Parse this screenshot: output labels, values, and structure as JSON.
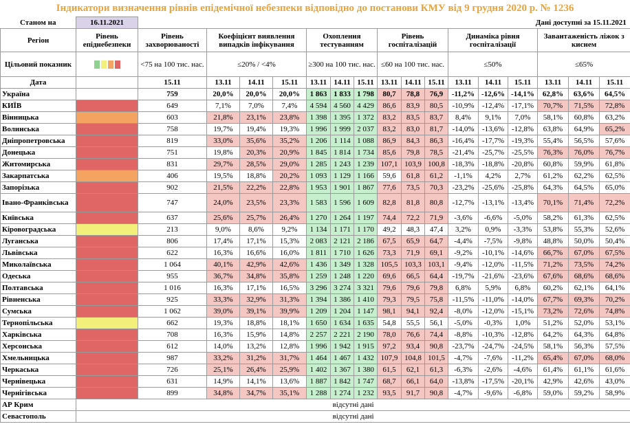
{
  "header": {
    "title": "Індикатори визначення рівнів епідемічної небезпеки відповідно до постанови КМУ від 9 грудня 2020 р. № 1236",
    "as_of_label": "Станом на",
    "as_of_date": "16.11.2021",
    "data_available": "Дані доступні за 15.11.2021"
  },
  "columns": {
    "region": "Регіон",
    "level": "Рівень епіднебезпеки",
    "incidence": "Рівень захворюваності",
    "detection": "Коефіцієнт виявлення випадків інфікування",
    "testing": "Охоплення тестуванням",
    "hospital": "Рівень госпіталізацій",
    "dynamics": "Динаміка рівня госпіталізації",
    "oxygen": "Завантаженість ліжок з киснем"
  },
  "targets": {
    "label": "Цільовий показник",
    "incidence": "<75 на 100 тис. нас.",
    "detection": "≤20% / <4%",
    "testing": "≥300 на 100 тис. нас.",
    "hospital": "≤60 на 100 тис. нас.",
    "dynamics": "≤50%",
    "oxygen": "≤65%"
  },
  "dates": {
    "label": "Дата",
    "incidence": "15.11",
    "days": [
      "13.11",
      "14.11",
      "15.11"
    ]
  },
  "rows": [
    {
      "region": "Україна",
      "level": null,
      "incidence": "759",
      "detection": [
        "20,0%",
        "20,0%",
        "20,0%"
      ],
      "testing": [
        "1 863",
        "1 833",
        "1 798"
      ],
      "hospital": [
        "80,7",
        "78,8",
        "76,9"
      ],
      "dynamics": [
        "-11,2%",
        "-12,6%",
        "-14,1%"
      ],
      "oxygen": [
        "62,8%",
        "63,6%",
        "64,5%"
      ]
    },
    {
      "region": "КИЇВ",
      "level": "#e06666",
      "incidence": "649",
      "detection": [
        "7,1%",
        "7,0%",
        "7,4%"
      ],
      "testing": [
        "4 594",
        "4 560",
        "4 429"
      ],
      "hospital": [
        "86,6",
        "83,9",
        "80,5"
      ],
      "dynamics": [
        "-10,9%",
        "-12,4%",
        "-17,1%"
      ],
      "oxygen": [
        "70,7%",
        "71,5%",
        "72,8%"
      ]
    },
    {
      "region": "Вінницька",
      "level": "#f4a460",
      "incidence": "603",
      "detection": [
        "21,8%",
        "23,1%",
        "23,8%"
      ],
      "testing": [
        "1 398",
        "1 395",
        "1 372"
      ],
      "hospital": [
        "83,2",
        "83,5",
        "83,7"
      ],
      "dynamics": [
        "8,4%",
        "9,1%",
        "7,0%"
      ],
      "oxygen": [
        "58,1%",
        "60,8%",
        "63,2%"
      ]
    },
    {
      "region": "Волинська",
      "level": "#e06666",
      "incidence": "758",
      "detection": [
        "19,7%",
        "19,4%",
        "19,3%"
      ],
      "testing": [
        "1 996",
        "1 999",
        "2 037"
      ],
      "hospital": [
        "83,2",
        "83,0",
        "81,7"
      ],
      "dynamics": [
        "-14,0%",
        "-13,6%",
        "-12,8%"
      ],
      "oxygen": [
        "63,8%",
        "64,9%",
        "65,2%"
      ]
    },
    {
      "region": "Дніпропетровська",
      "level": "#e06666",
      "incidence": "819",
      "detection": [
        "33,0%",
        "35,6%",
        "35,2%"
      ],
      "testing": [
        "1 206",
        "1 114",
        "1 088"
      ],
      "hospital": [
        "86,9",
        "84,3",
        "86,3"
      ],
      "dynamics": [
        "-16,4%",
        "-17,7%",
        "-19,3%"
      ],
      "oxygen": [
        "55,4%",
        "56,5%",
        "57,6%"
      ]
    },
    {
      "region": "Донецька",
      "level": "#e06666",
      "incidence": "751",
      "detection": [
        "19,8%",
        "20,3%",
        "20,9%"
      ],
      "testing": [
        "1 845",
        "1 814",
        "1 734"
      ],
      "hospital": [
        "85,6",
        "79,8",
        "78,5"
      ],
      "dynamics": [
        "-21,4%",
        "-25,7%",
        "-25,5%"
      ],
      "oxygen": [
        "76,3%",
        "76,0%",
        "76,7%"
      ]
    },
    {
      "region": "Житомирська",
      "level": "#e06666",
      "incidence": "831",
      "detection": [
        "29,7%",
        "28,5%",
        "29,0%"
      ],
      "testing": [
        "1 285",
        "1 243",
        "1 239"
      ],
      "hospital": [
        "107,1",
        "103,9",
        "100,8"
      ],
      "dynamics": [
        "-18,3%",
        "-18,8%",
        "-20,8%"
      ],
      "oxygen": [
        "60,8%",
        "59,9%",
        "61,8%"
      ]
    },
    {
      "region": "Закарпатська",
      "level": "#f4a460",
      "incidence": "406",
      "detection": [
        "19,5%",
        "18,8%",
        "20,2%"
      ],
      "testing": [
        "1 093",
        "1 129",
        "1 166"
      ],
      "hospital": [
        "59,6",
        "61,8",
        "61,2"
      ],
      "dynamics": [
        "-1,1%",
        "4,2%",
        "2,7%"
      ],
      "oxygen": [
        "61,2%",
        "62,2%",
        "62,5%"
      ]
    },
    {
      "region": "Запорізька",
      "level": "#e06666",
      "incidence": "902",
      "detection": [
        "21,5%",
        "22,2%",
        "22,8%"
      ],
      "testing": [
        "1 953",
        "1 901",
        "1 867"
      ],
      "hospital": [
        "77,6",
        "73,5",
        "70,3"
      ],
      "dynamics": [
        "-23,2%",
        "-25,6%",
        "-25,8%"
      ],
      "oxygen": [
        "64,3%",
        "64,5%",
        "65,0%"
      ]
    },
    {
      "region": "Івано-Франківська",
      "level": "#e06666",
      "incidence": "747",
      "detection": [
        "24,0%",
        "23,5%",
        "23,3%"
      ],
      "testing": [
        "1 583",
        "1 596",
        "1 609"
      ],
      "hospital": [
        "82,8",
        "81,8",
        "80,8"
      ],
      "dynamics": [
        "-12,7%",
        "-13,1%",
        "-13,4%"
      ],
      "oxygen": [
        "70,1%",
        "71,4%",
        "72,2%"
      ]
    },
    {
      "region": "Київська",
      "level": "#e06666",
      "incidence": "637",
      "detection": [
        "25,6%",
        "25,7%",
        "26,4%"
      ],
      "testing": [
        "1 270",
        "1 264",
        "1 197"
      ],
      "hospital": [
        "74,4",
        "72,2",
        "71,9"
      ],
      "dynamics": [
        "-3,6%",
        "-6,6%",
        "-5,0%"
      ],
      "oxygen": [
        "58,2%",
        "61,3%",
        "62,5%"
      ]
    },
    {
      "region": "Кіровоградська",
      "level": "#f2f07a",
      "incidence": "213",
      "detection": [
        "9,0%",
        "8,6%",
        "9,2%"
      ],
      "testing": [
        "1 134",
        "1 171",
        "1 170"
      ],
      "hospital": [
        "49,2",
        "48,3",
        "47,4"
      ],
      "dynamics": [
        "3,2%",
        "0,9%",
        "-3,3%"
      ],
      "oxygen": [
        "53,8%",
        "55,3%",
        "52,6%"
      ]
    },
    {
      "region": "Луганська",
      "level": "#e06666",
      "incidence": "806",
      "detection": [
        "17,4%",
        "17,1%",
        "15,3%"
      ],
      "testing": [
        "2 083",
        "2 121",
        "2 186"
      ],
      "hospital": [
        "67,5",
        "65,9",
        "64,7"
      ],
      "dynamics": [
        "-4,4%",
        "-7,5%",
        "-9,8%"
      ],
      "oxygen": [
        "48,8%",
        "50,0%",
        "50,4%"
      ]
    },
    {
      "region": "Львівська",
      "level": "#e06666",
      "incidence": "622",
      "detection": [
        "16,3%",
        "16,6%",
        "16,0%"
      ],
      "testing": [
        "1 811",
        "1 710",
        "1 626"
      ],
      "hospital": [
        "73,3",
        "71,9",
        "69,1"
      ],
      "dynamics": [
        "-9,2%",
        "-10,1%",
        "-14,6%"
      ],
      "oxygen": [
        "66,7%",
        "67,0%",
        "67,5%"
      ]
    },
    {
      "region": "Миколаївська",
      "level": "#e06666",
      "incidence": "1 064",
      "detection": [
        "40,1%",
        "42,9%",
        "42,6%"
      ],
      "testing": [
        "1 436",
        "1 349",
        "1 328"
      ],
      "hospital": [
        "105,5",
        "103,3",
        "103,1"
      ],
      "dynamics": [
        "-9,4%",
        "-12,0%",
        "-11,5%"
      ],
      "oxygen": [
        "71,2%",
        "73,5%",
        "74,2%"
      ]
    },
    {
      "region": "Одеська",
      "level": "#e06666",
      "incidence": "955",
      "detection": [
        "36,7%",
        "34,8%",
        "35,8%"
      ],
      "testing": [
        "1 259",
        "1 248",
        "1 220"
      ],
      "hospital": [
        "69,6",
        "66,5",
        "64,4"
      ],
      "dynamics": [
        "-19,7%",
        "-21,6%",
        "-23,6%"
      ],
      "oxygen": [
        "67,6%",
        "68,6%",
        "68,6%"
      ]
    },
    {
      "region": "Полтавська",
      "level": "#e06666",
      "incidence": "1 016",
      "detection": [
        "16,3%",
        "17,1%",
        "16,5%"
      ],
      "testing": [
        "3 296",
        "3 274",
        "3 321"
      ],
      "hospital": [
        "79,6",
        "79,6",
        "79,8"
      ],
      "dynamics": [
        "6,8%",
        "5,9%",
        "6,8%"
      ],
      "oxygen": [
        "60,2%",
        "62,1%",
        "64,1%"
      ]
    },
    {
      "region": "Рівненська",
      "level": "#e06666",
      "incidence": "925",
      "detection": [
        "33,3%",
        "32,9%",
        "31,3%"
      ],
      "testing": [
        "1 394",
        "1 386",
        "1 410"
      ],
      "hospital": [
        "79,3",
        "79,5",
        "75,8"
      ],
      "dynamics": [
        "-11,5%",
        "-11,0%",
        "-14,0%"
      ],
      "oxygen": [
        "67,7%",
        "69,3%",
        "70,2%"
      ]
    },
    {
      "region": "Сумська",
      "level": "#e06666",
      "incidence": "1 062",
      "detection": [
        "39,0%",
        "39,1%",
        "39,9%"
      ],
      "testing": [
        "1 209",
        "1 204",
        "1 147"
      ],
      "hospital": [
        "98,1",
        "94,1",
        "92,4"
      ],
      "dynamics": [
        "-8,0%",
        "-12,0%",
        "-15,1%"
      ],
      "oxygen": [
        "73,2%",
        "72,6%",
        "74,8%"
      ]
    },
    {
      "region": "Тернопільська",
      "level": "#f2f07a",
      "incidence": "662",
      "detection": [
        "19,3%",
        "18,8%",
        "18,1%"
      ],
      "testing": [
        "1 650",
        "1 634",
        "1 635"
      ],
      "hospital": [
        "54,8",
        "55,5",
        "56,1"
      ],
      "dynamics": [
        "-5,0%",
        "-0,3%",
        "1,0%"
      ],
      "oxygen": [
        "51,2%",
        "52,0%",
        "53,1%"
      ]
    },
    {
      "region": "Харківська",
      "level": "#e06666",
      "incidence": "708",
      "detection": [
        "16,3%",
        "15,9%",
        "14,8%"
      ],
      "testing": [
        "2 257",
        "2 221",
        "2 190"
      ],
      "hospital": [
        "78,0",
        "76,6",
        "74,4"
      ],
      "dynamics": [
        "-8,8%",
        "-10,3%",
        "-12,8%"
      ],
      "oxygen": [
        "64,2%",
        "64,3%",
        "64,8%"
      ]
    },
    {
      "region": "Херсонська",
      "level": "#e06666",
      "incidence": "612",
      "detection": [
        "14,0%",
        "13,2%",
        "12,8%"
      ],
      "testing": [
        "1 996",
        "1 942",
        "1 915"
      ],
      "hospital": [
        "97,2",
        "93,4",
        "90,8"
      ],
      "dynamics": [
        "-23,7%",
        "-24,7%",
        "-24,5%"
      ],
      "oxygen": [
        "58,1%",
        "56,3%",
        "57,5%"
      ]
    },
    {
      "region": "Хмельницька",
      "level": "#e06666",
      "incidence": "987",
      "detection": [
        "33,2%",
        "31,2%",
        "31,7%"
      ],
      "testing": [
        "1 464",
        "1 467",
        "1 432"
      ],
      "hospital": [
        "107,9",
        "104,8",
        "101,5"
      ],
      "dynamics": [
        "-4,7%",
        "-7,6%",
        "-11,2%"
      ],
      "oxygen": [
        "65,4%",
        "67,0%",
        "68,0%"
      ]
    },
    {
      "region": "Черкаська",
      "level": "#e06666",
      "incidence": "726",
      "detection": [
        "25,1%",
        "26,4%",
        "25,9%"
      ],
      "testing": [
        "1 402",
        "1 367",
        "1 380"
      ],
      "hospital": [
        "61,5",
        "62,1",
        "61,3"
      ],
      "dynamics": [
        "-6,3%",
        "-2,6%",
        "-4,6%"
      ],
      "oxygen": [
        "61,4%",
        "61,1%",
        "61,6%"
      ]
    },
    {
      "region": "Чернівецька",
      "level": "#e06666",
      "incidence": "631",
      "detection": [
        "14,9%",
        "14,1%",
        "13,6%"
      ],
      "testing": [
        "1 887",
        "1 842",
        "1 747"
      ],
      "hospital": [
        "68,7",
        "66,1",
        "64,0"
      ],
      "dynamics": [
        "-13,8%",
        "-17,5%",
        "-20,1%"
      ],
      "oxygen": [
        "42,9%",
        "42,6%",
        "43,0%"
      ]
    },
    {
      "region": "Чернігівська",
      "level": "#e06666",
      "incidence": "899",
      "detection": [
        "34,8%",
        "34,7%",
        "35,1%"
      ],
      "testing": [
        "1 288",
        "1 274",
        "1 232"
      ],
      "hospital": [
        "93,5",
        "91,7",
        "90,8"
      ],
      "dynamics": [
        "-4,7%",
        "-9,6%",
        "-6,8%"
      ],
      "oxygen": [
        "59,0%",
        "59,2%",
        "58,9%"
      ]
    },
    {
      "region": "АР Крим",
      "note": "відсутні дані"
    },
    {
      "region": "Севастополь",
      "note": "відсутні дані"
    }
  ]
}
